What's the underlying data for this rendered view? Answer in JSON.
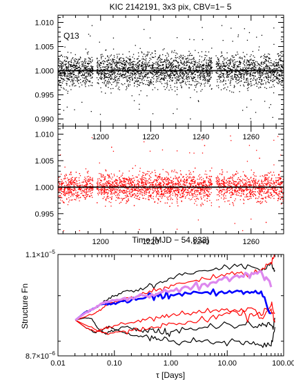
{
  "chart_data": [
    {
      "id": "top-black-lightcurve",
      "type": "scatter",
      "title": "KIC 2142191,  3x3 pix, CBV=1− 5",
      "annotation": "Q13",
      "xlim": [
        1183,
        1273
      ],
      "ylim": [
        0.9885,
        1.0115
      ],
      "ytick_labels": [
        "0.990",
        "0.995",
        "1.000",
        "1.005",
        "1.010"
      ],
      "ytick_values": [
        0.99,
        0.995,
        1.0,
        1.005,
        1.01
      ],
      "xtick_values": [
        1200,
        1220,
        1240,
        1260
      ],
      "reference_line_y": 1.0,
      "point_color": "#000000",
      "gaps": [
        [
          1197,
          1198.5
        ],
        [
          1244.5,
          1246
        ]
      ],
      "n_points": 3200,
      "sigma": 0.0022,
      "x_axis_labels_shown": false
    },
    {
      "id": "middle-red-lightcurve",
      "type": "scatter",
      "xlabel": "Time [MJD − 54,833]",
      "xlim": [
        1183,
        1273
      ],
      "ylim": [
        0.9912,
        1.0115
      ],
      "ytick_labels": [
        "0.995",
        "1.000",
        "1.005",
        "1.010"
      ],
      "ytick_values": [
        0.995,
        1.0,
        1.005,
        1.01
      ],
      "xtick_labels": [
        "1200",
        "1220",
        "1240",
        "1260"
      ],
      "xtick_values": [
        1200,
        1220,
        1240,
        1260
      ],
      "reference_line_y": 1.0,
      "point_color": "#ff0000",
      "gaps": [
        [
          1197,
          1198.5
        ],
        [
          1244.5,
          1246
        ]
      ],
      "n_points": 3200,
      "sigma": 0.0017
    },
    {
      "id": "structure-function",
      "type": "line",
      "xscale": "log",
      "yscale": "log",
      "xlabel": "τ [Days]",
      "ylabel": "Structure Fn",
      "xlim": [
        0.01,
        100
      ],
      "ylim": [
        8.7e-06,
        1.1e-05
      ],
      "xtick_labels": [
        "0.01",
        "0.10",
        "1.00",
        "10.00",
        "100.00"
      ],
      "xtick_values": [
        0.01,
        0.1,
        1,
        10,
        100
      ],
      "ytick_labels": [
        {
          "mantissa": "8.7×10",
          "exponent": "−6",
          "value": 8.7e-06
        },
        {
          "mantissa": "1.1×10",
          "exponent": "−5",
          "value": 1.1e-05
        }
      ],
      "series": [
        {
          "color": "#000000",
          "width": 1.2,
          "x": [
            0.0204,
            0.03,
            0.045,
            0.06,
            0.08,
            0.12,
            0.2,
            0.35,
            0.6,
            1,
            2,
            4,
            8,
            15,
            25,
            40,
            60,
            70
          ],
          "y": [
            9.45e-06,
            9.62e-06,
            9.7e-06,
            9.82e-06,
            9.95e-06,
            1.005e-05,
            1.012e-05,
            1.018e-05,
            1.03e-05,
            1.042e-05,
            1.052e-05,
            1.06e-05,
            1.065e-05,
            1.07e-05,
            1.072e-05,
            1.055e-05,
            1.078e-05,
            1.06e-05
          ]
        },
        {
          "color": "#000000",
          "width": 1.2,
          "x": [
            0.0204,
            0.03,
            0.045,
            0.06,
            0.08,
            0.1,
            0.15,
            0.25,
            0.4,
            0.6,
            1,
            2,
            4,
            8,
            15,
            25,
            40,
            60,
            70
          ],
          "y": [
            9.45e-06,
            9.3e-06,
            9.18e-06,
            9.22e-06,
            9.32e-06,
            9.25e-06,
            9.18e-06,
            9.12e-06,
            9.08e-06,
            9.05e-06,
            9e-06,
            8.98e-06,
            9.02e-06,
            8.97e-06,
            9e-06,
            8.95e-06,
            8.92e-06,
            8.9e-06,
            9.3e-06
          ]
        },
        {
          "color": "#000000",
          "width": 1.2,
          "x": [
            0.0204,
            0.03,
            0.04,
            0.05,
            0.07,
            0.1,
            0.15,
            0.22,
            0.3,
            0.45,
            0.7,
            1,
            2,
            4,
            8,
            15,
            25,
            40,
            55,
            65,
            70
          ],
          "y": [
            9.45e-06,
            9.5e-06,
            9.48e-06,
            9.28e-06,
            9.15e-06,
            9.22e-06,
            9.3e-06,
            9.28e-06,
            9.22e-06,
            9.25e-06,
            9.15e-06,
            9.2e-06,
            9.25e-06,
            9.3e-06,
            9.35e-06,
            9.3e-06,
            9.38e-06,
            9.32e-06,
            9.4e-06,
            9.25e-06,
            9.5e-06
          ]
        },
        {
          "color": "#ff0000",
          "width": 1.2,
          "x": [
            0.0204,
            0.03,
            0.045,
            0.06,
            0.08,
            0.12,
            0.2,
            0.35,
            0.6,
            1,
            2,
            4,
            8,
            15,
            25,
            40,
            60,
            70
          ],
          "y": [
            9.45e-06,
            9.52e-06,
            9.6e-06,
            9.7e-06,
            9.82e-06,
            9.9e-06,
            9.98e-06,
            1.005e-05,
            1.015e-05,
            1.025e-05,
            1.032e-05,
            1.04e-05,
            1.05e-05,
            1.055e-05,
            1.048e-05,
            1.062e-05,
            1.08e-05,
            1.1e-05
          ]
        },
        {
          "color": "#ff0000",
          "width": 1.2,
          "x": [
            0.0204,
            0.03,
            0.045,
            0.06,
            0.08,
            0.12,
            0.2,
            0.35,
            0.6,
            1,
            2,
            4,
            8,
            15,
            25,
            40,
            60,
            70
          ],
          "y": [
            9.45e-06,
            9.3e-06,
            9.2e-06,
            9.25e-06,
            9.3e-06,
            9.35e-06,
            9.4e-06,
            9.45e-06,
            9.5e-06,
            9.55e-06,
            9.6e-06,
            9.62e-06,
            9.7e-06,
            9.65e-06,
            9.72e-06,
            9.55e-06,
            9.78e-06,
            9.6e-06
          ]
        },
        {
          "color": "#ff0000",
          "width": 1.2,
          "x": [
            0.0204,
            0.03,
            0.045,
            0.06,
            0.08,
            0.12,
            0.2,
            0.35,
            0.6,
            1,
            2,
            4,
            8,
            15,
            25,
            40,
            60,
            70
          ],
          "y": [
            9.45e-06,
            9.35e-06,
            9.25e-06,
            9.18e-06,
            9.15e-06,
            9.2e-06,
            9.22e-06,
            9.25e-06,
            9.3e-06,
            9.38e-06,
            9.42e-06,
            9.45e-06,
            9.55e-06,
            9.62e-06,
            9.58e-06,
            9.5e-06,
            9.7e-06,
            9.4e-06
          ]
        },
        {
          "color": "#0000ff",
          "width": 2.6,
          "x": [
            0.0204,
            0.03,
            0.045,
            0.06,
            0.08,
            0.12,
            0.2,
            0.35,
            0.6,
            1,
            2,
            4,
            8,
            15,
            25,
            40,
            60
          ],
          "y": [
            9.45e-06,
            9.62e-06,
            9.72e-06,
            9.8e-06,
            9.82e-06,
            9.85e-06,
            9.9e-06,
            9.95e-06,
            9.98e-06,
            1.002e-05,
            1.005e-05,
            1.008e-05,
            1.01e-05,
            1.012e-05,
            1.006e-05,
            1.01e-05,
            9.6e-06
          ]
        },
        {
          "color": "#dd88ee",
          "width": 3.2,
          "x": [
            0.0204,
            0.03,
            0.045,
            0.06,
            0.08,
            0.12,
            0.2,
            0.35,
            0.6,
            1,
            2,
            4,
            8,
            15,
            25,
            40,
            60
          ],
          "y": [
            9.45e-06,
            9.6e-06,
            9.72e-06,
            9.82e-06,
            9.86e-06,
            9.9e-06,
            9.95e-06,
            1e-05,
            1.005e-05,
            1.012e-05,
            1.02e-05,
            1.028e-05,
            1.038e-05,
            1.048e-05,
            1.042e-05,
            1.058e-05,
            1.02e-05
          ]
        }
      ]
    }
  ]
}
